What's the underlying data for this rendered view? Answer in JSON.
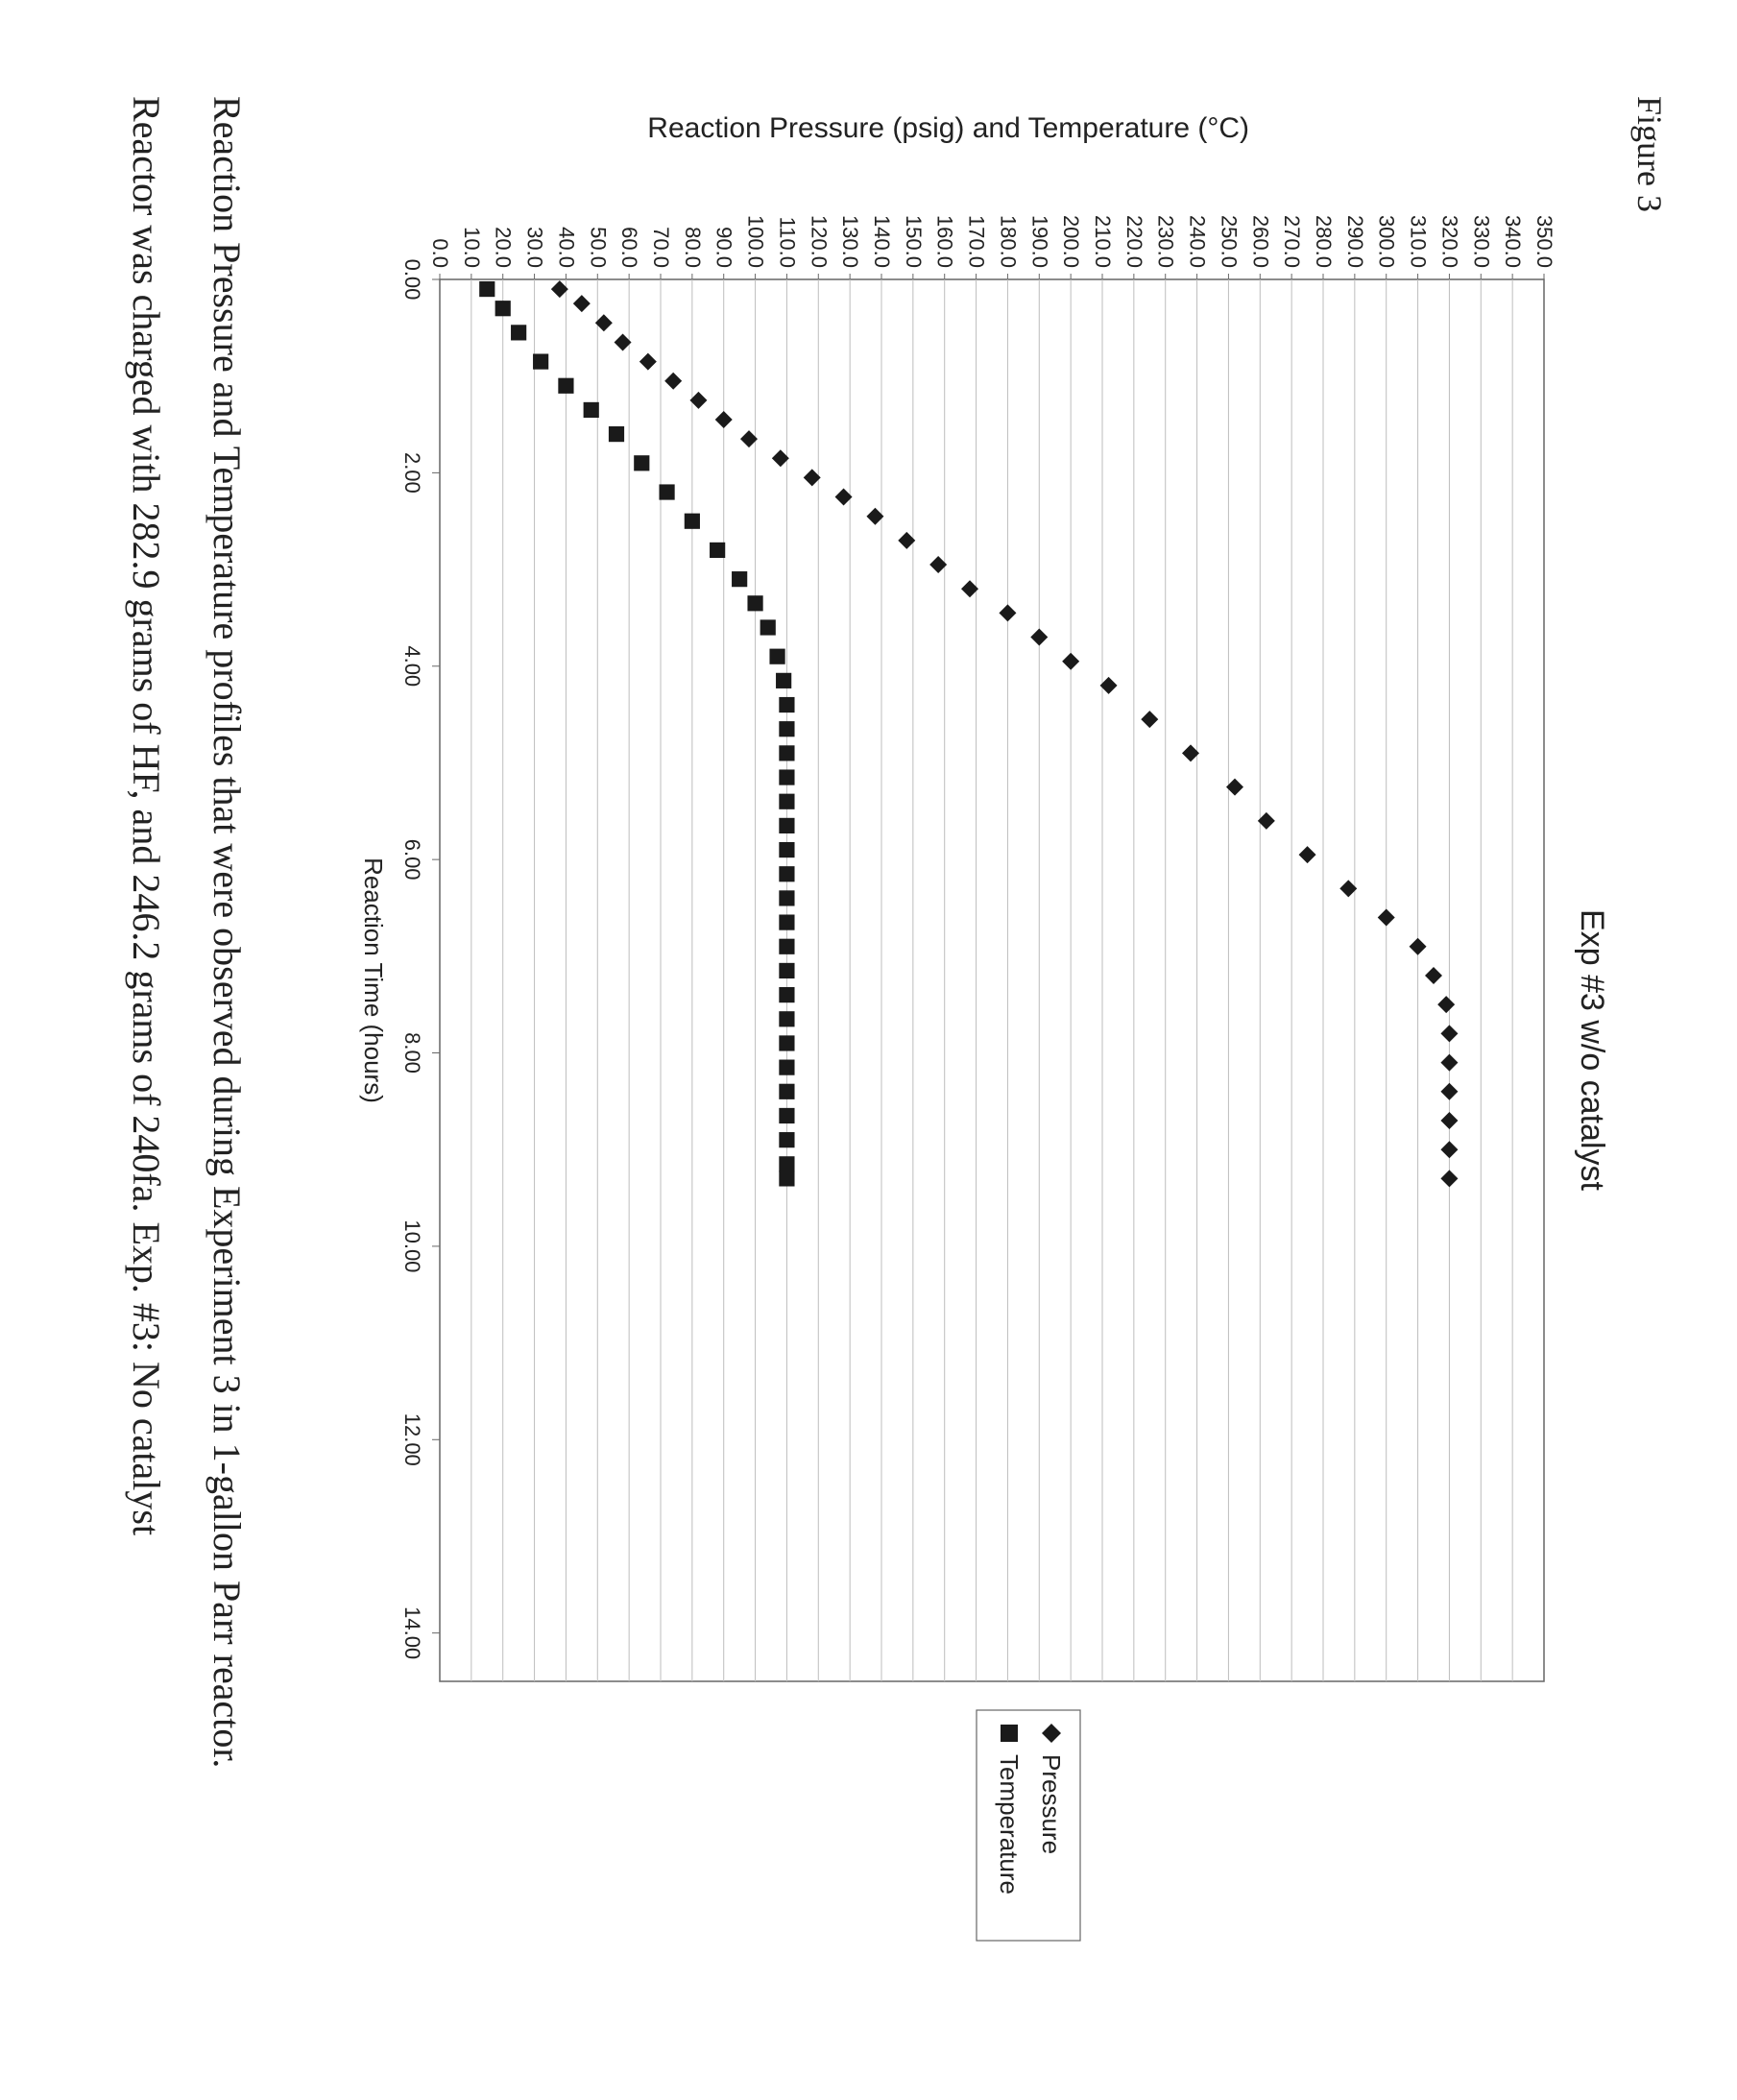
{
  "figure_label": "Figure 3",
  "chart": {
    "type": "scatter",
    "title": "Exp #3 w/o catalyst",
    "xlabel": "Reaction Time (hours)",
    "ylabel": "Reaction Pressure (psig) and Temperature (°C)",
    "xlim": [
      0.0,
      14.5
    ],
    "ylim": [
      0.0,
      350.0
    ],
    "xtick_step": 2.0,
    "ytick_step": 10.0,
    "xticks": [
      0.0,
      2.0,
      4.0,
      6.0,
      8.0,
      10.0,
      12.0,
      14.0
    ],
    "background_color": "#ffffff",
    "border_color": "#666666",
    "gridline_color": "#bdbdbd",
    "tick_color": "#666666",
    "axis_fontsize": 26,
    "tick_fontsize": 22,
    "legend": {
      "position": "right",
      "border_color": "#666666",
      "fontsize": 26,
      "items": [
        {
          "label": "Pressure",
          "marker": "diamond",
          "color": "#1a1a1a"
        },
        {
          "label": "Temperature",
          "marker": "square",
          "color": "#1a1a1a"
        }
      ]
    },
    "series": [
      {
        "name": "Pressure",
        "marker": "diamond",
        "color": "#1a1a1a",
        "marker_size": 9,
        "points": [
          [
            0.1,
            38
          ],
          [
            0.25,
            45
          ],
          [
            0.45,
            52
          ],
          [
            0.65,
            58
          ],
          [
            0.85,
            66
          ],
          [
            1.05,
            74
          ],
          [
            1.25,
            82
          ],
          [
            1.45,
            90
          ],
          [
            1.65,
            98
          ],
          [
            1.85,
            108
          ],
          [
            2.05,
            118
          ],
          [
            2.25,
            128
          ],
          [
            2.45,
            138
          ],
          [
            2.7,
            148
          ],
          [
            2.95,
            158
          ],
          [
            3.2,
            168
          ],
          [
            3.45,
            180
          ],
          [
            3.7,
            190
          ],
          [
            3.95,
            200
          ],
          [
            4.2,
            212
          ],
          [
            4.55,
            225
          ],
          [
            4.9,
            238
          ],
          [
            5.25,
            252
          ],
          [
            5.6,
            262
          ],
          [
            5.95,
            275
          ],
          [
            6.3,
            288
          ],
          [
            6.6,
            300
          ],
          [
            6.9,
            310
          ],
          [
            7.2,
            315
          ],
          [
            7.5,
            319
          ],
          [
            7.8,
            320
          ],
          [
            8.1,
            320
          ],
          [
            8.4,
            320
          ],
          [
            8.7,
            320
          ],
          [
            9.0,
            320
          ],
          [
            9.3,
            320
          ]
        ]
      },
      {
        "name": "Temperature",
        "marker": "square",
        "color": "#1a1a1a",
        "marker_size": 9,
        "points": [
          [
            0.1,
            15
          ],
          [
            0.3,
            20
          ],
          [
            0.55,
            25
          ],
          [
            0.85,
            32
          ],
          [
            1.1,
            40
          ],
          [
            1.35,
            48
          ],
          [
            1.6,
            56
          ],
          [
            1.9,
            64
          ],
          [
            2.2,
            72
          ],
          [
            2.5,
            80
          ],
          [
            2.8,
            88
          ],
          [
            3.1,
            95
          ],
          [
            3.35,
            100
          ],
          [
            3.6,
            104
          ],
          [
            3.9,
            107
          ],
          [
            4.15,
            109
          ],
          [
            4.4,
            110
          ],
          [
            4.65,
            110
          ],
          [
            4.9,
            110
          ],
          [
            5.15,
            110
          ],
          [
            5.4,
            110
          ],
          [
            5.65,
            110
          ],
          [
            5.9,
            110
          ],
          [
            6.15,
            110
          ],
          [
            6.4,
            110
          ],
          [
            6.65,
            110
          ],
          [
            6.9,
            110
          ],
          [
            7.15,
            110
          ],
          [
            7.4,
            110
          ],
          [
            7.65,
            110
          ],
          [
            7.9,
            110
          ],
          [
            8.15,
            110
          ],
          [
            8.4,
            110
          ],
          [
            8.65,
            110
          ],
          [
            8.9,
            110
          ],
          [
            9.15,
            110
          ],
          [
            9.3,
            110
          ]
        ]
      }
    ]
  },
  "caption_line1": "Reaction Pressure and Temperature profiles that were observed during Experiment 3 in 1-gallon Parr reactor.",
  "caption_line2": "Reactor was charged with 282.9 grams of HF, and 246.2 grams of 240fa.  Exp. #3:  No catalyst"
}
